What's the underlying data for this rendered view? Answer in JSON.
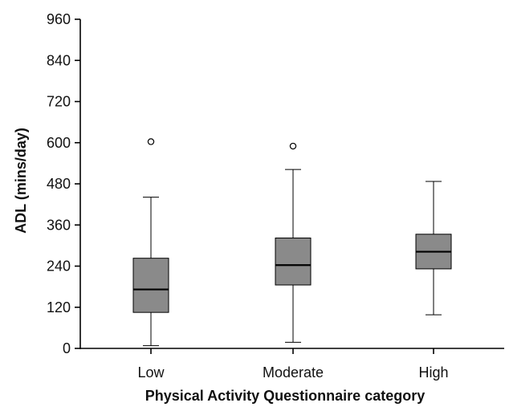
{
  "chart_data": {
    "type": "boxplot",
    "title": "",
    "xlabel": "Physical Activity Questionnaire category",
    "ylabel": "ADL (mins/day)",
    "ylim": [
      0,
      960
    ],
    "yticks": [
      0,
      120,
      240,
      360,
      480,
      600,
      720,
      840,
      960
    ],
    "grid": false,
    "categories": [
      "Low",
      "Moderate",
      "High"
    ],
    "boxes": [
      {
        "category": "Low",
        "whisker_low": 8,
        "q1": 105,
        "median": 172,
        "q3": 263,
        "whisker_high": 441,
        "outliers": [
          603
        ]
      },
      {
        "category": "Moderate",
        "whisker_low": 18,
        "q1": 185,
        "median": 243,
        "q3": 322,
        "whisker_high": 522,
        "outliers": [
          590
        ]
      },
      {
        "category": "High",
        "whisker_low": 98,
        "q1": 232,
        "median": 282,
        "q3": 333,
        "whisker_high": 487,
        "outliers": []
      }
    ],
    "colors": {
      "box_fill": "#8a8a8a",
      "line": "#000000"
    }
  }
}
